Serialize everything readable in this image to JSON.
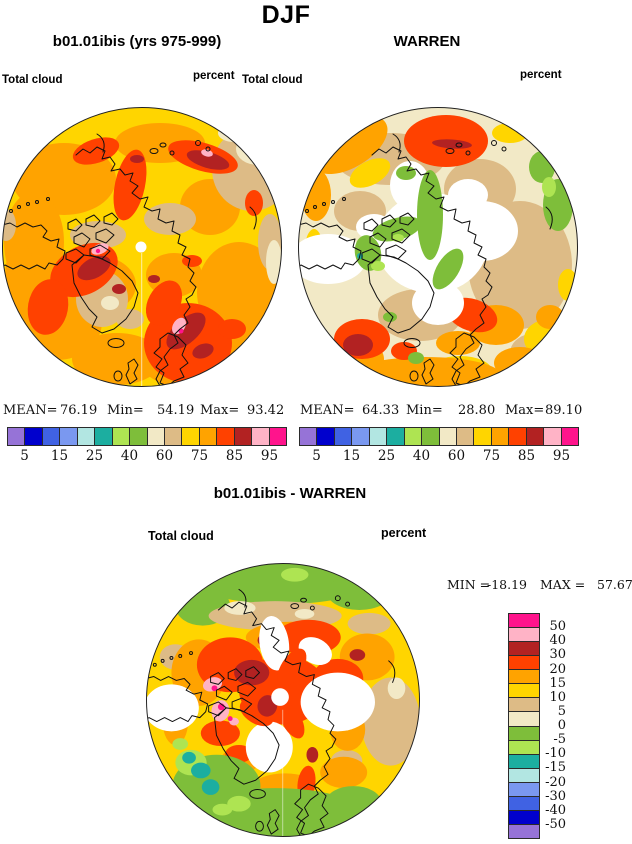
{
  "figure_title": "DJF",
  "top_left_panel": {
    "title": "b01.01ibis (yrs 975-999)",
    "variable_label": "Total cloud",
    "units_label": "percent",
    "stats": {
      "mean_label": "MEAN=",
      "mean": "76.19",
      "min_label": "Min=",
      "min": "54.19",
      "max_label": "Max=",
      "max": "93.42"
    }
  },
  "top_right_panel": {
    "title": "WARREN",
    "variable_label": "Total cloud",
    "units_label": "percent",
    "stats": {
      "mean_label": "MEAN=",
      "mean": "64.33",
      "min_label": "Min=",
      "min": "28.80",
      "max_label": "Max=",
      "max": "89.10"
    }
  },
  "diff_panel": {
    "title": "b01.01ibis - WARREN",
    "variable_label": "Total cloud",
    "units_label": "percent",
    "min_label": "MIN =",
    "min": "-18.19",
    "max_label": "MAX =",
    "max": "57.67"
  },
  "cloud_colorbar": {
    "tick_labels": [
      "5",
      "15",
      "25",
      "40",
      "60",
      "75",
      "85",
      "95"
    ],
    "colors": [
      "#9673D7",
      "#0000CD",
      "#4062E3",
      "#7A98F0",
      "#B2E6E2",
      "#1CAEA0",
      "#AEE452",
      "#7EBE3A",
      "#F2E9C6",
      "#DDBB86",
      "#FFD500",
      "#FFA300",
      "#FF4100",
      "#B22222",
      "#FFB3C6",
      "#FF148C"
    ]
  },
  "diff_colorbar": {
    "tick_labels": [
      "50",
      "40",
      "30",
      "20",
      "15",
      "10",
      "5",
      "0",
      "-5",
      "-10",
      "-15",
      "-20",
      "-30",
      "-40",
      "-50"
    ],
    "colors": [
      "#FF148C",
      "#FFB3C6",
      "#B22222",
      "#FF4100",
      "#FFA300",
      "#FFD500",
      "#DDBB86",
      "#F2E9C6",
      "#7EBE3A",
      "#AEE452",
      "#1CAEA0",
      "#B2E6E2",
      "#7A98F0",
      "#4062E3",
      "#0000CD",
      "#9673D7"
    ]
  },
  "chart_data": {
    "type": "heatmap",
    "title": "DJF",
    "variable": "Total cloud",
    "units": "percent",
    "panels": [
      {
        "name": "b01.01ibis (yrs 975-999)",
        "mean": 76.19,
        "min": 54.19,
        "max": 93.42
      },
      {
        "name": "WARREN",
        "mean": 64.33,
        "min": 28.8,
        "max": 89.1
      },
      {
        "name": "b01.01ibis - WARREN",
        "min": -18.19,
        "max": 57.67
      }
    ],
    "cloud_scale_ticks": [
      5,
      15,
      25,
      40,
      60,
      75,
      85,
      95
    ],
    "diff_scale_ticks": [
      50,
      40,
      30,
      20,
      15,
      10,
      5,
      0,
      -5,
      -10,
      -15,
      -20,
      -30,
      -40,
      -50
    ]
  }
}
